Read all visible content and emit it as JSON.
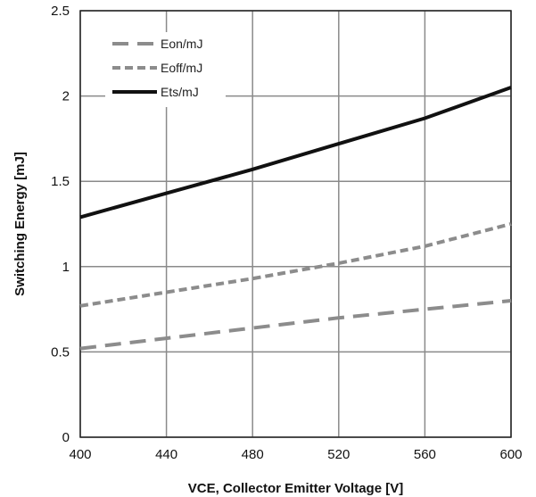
{
  "chart_data": {
    "type": "line",
    "title": "",
    "xlabel": "VCE, Collector Emitter Voltage [V]",
    "ylabel": "Switching Energy [mJ]",
    "xlim": [
      400,
      600
    ],
    "ylim": [
      0,
      2.5
    ],
    "x_ticks": [
      "400",
      "440",
      "480",
      "520",
      "560",
      "600"
    ],
    "y_ticks": [
      "0",
      "0.5",
      "1",
      "1.5",
      "2",
      "2.5"
    ],
    "grid": true,
    "legend_position": "top-left",
    "series": [
      {
        "name": "Eon/mJ",
        "color": "#8c8c8c",
        "style": "long-dash",
        "x": [
          400,
          440,
          480,
          520,
          560,
          600
        ],
        "y": [
          0.52,
          0.58,
          0.64,
          0.7,
          0.75,
          0.8
        ]
      },
      {
        "name": "Eoff/mJ",
        "color": "#8c8c8c",
        "style": "short-dash",
        "x": [
          400,
          440,
          480,
          520,
          560,
          600
        ],
        "y": [
          0.77,
          0.85,
          0.93,
          1.02,
          1.12,
          1.25
        ]
      },
      {
        "name": "Ets/mJ",
        "color": "#111111",
        "style": "solid",
        "x": [
          400,
          440,
          480,
          520,
          560,
          600
        ],
        "y": [
          1.29,
          1.43,
          1.57,
          1.72,
          1.87,
          2.05
        ]
      }
    ]
  }
}
